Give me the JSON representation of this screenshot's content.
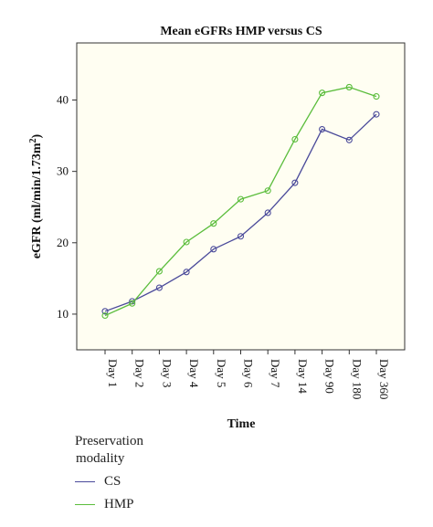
{
  "chart_data": {
    "type": "line",
    "title": "Mean eGFRs HMP versus CS",
    "xlabel": "Time",
    "ylabel": "eGFR (ml/min/1.73m",
    "ylabel_superscript": "2",
    "ylabel_suffix": ")",
    "categories": [
      "Day 1",
      "Day 2",
      "Day 3",
      "Day 4",
      "Day 5",
      "Day 6",
      "Day 7",
      "Day 14",
      "Day 90",
      "Day 180",
      "Day 360"
    ],
    "ylim": [
      5,
      48
    ],
    "yticks": [
      10,
      20,
      30,
      40
    ],
    "grid": false,
    "background": "#fffef2",
    "series": [
      {
        "name": "CS",
        "color": "#4a4a9a",
        "values": [
          10.4,
          11.8,
          13.7,
          15.9,
          19.1,
          20.9,
          24.2,
          28.4,
          35.9,
          34.4,
          38.0
        ]
      },
      {
        "name": "HMP",
        "color": "#5bbd3c",
        "values": [
          9.8,
          11.5,
          16.0,
          20.1,
          22.7,
          26.1,
          27.3,
          34.5,
          41.0,
          41.8,
          40.5
        ]
      }
    ],
    "legend": {
      "title_line1": "Preservation",
      "title_line2": "modality",
      "placement": "bottom-left"
    }
  }
}
